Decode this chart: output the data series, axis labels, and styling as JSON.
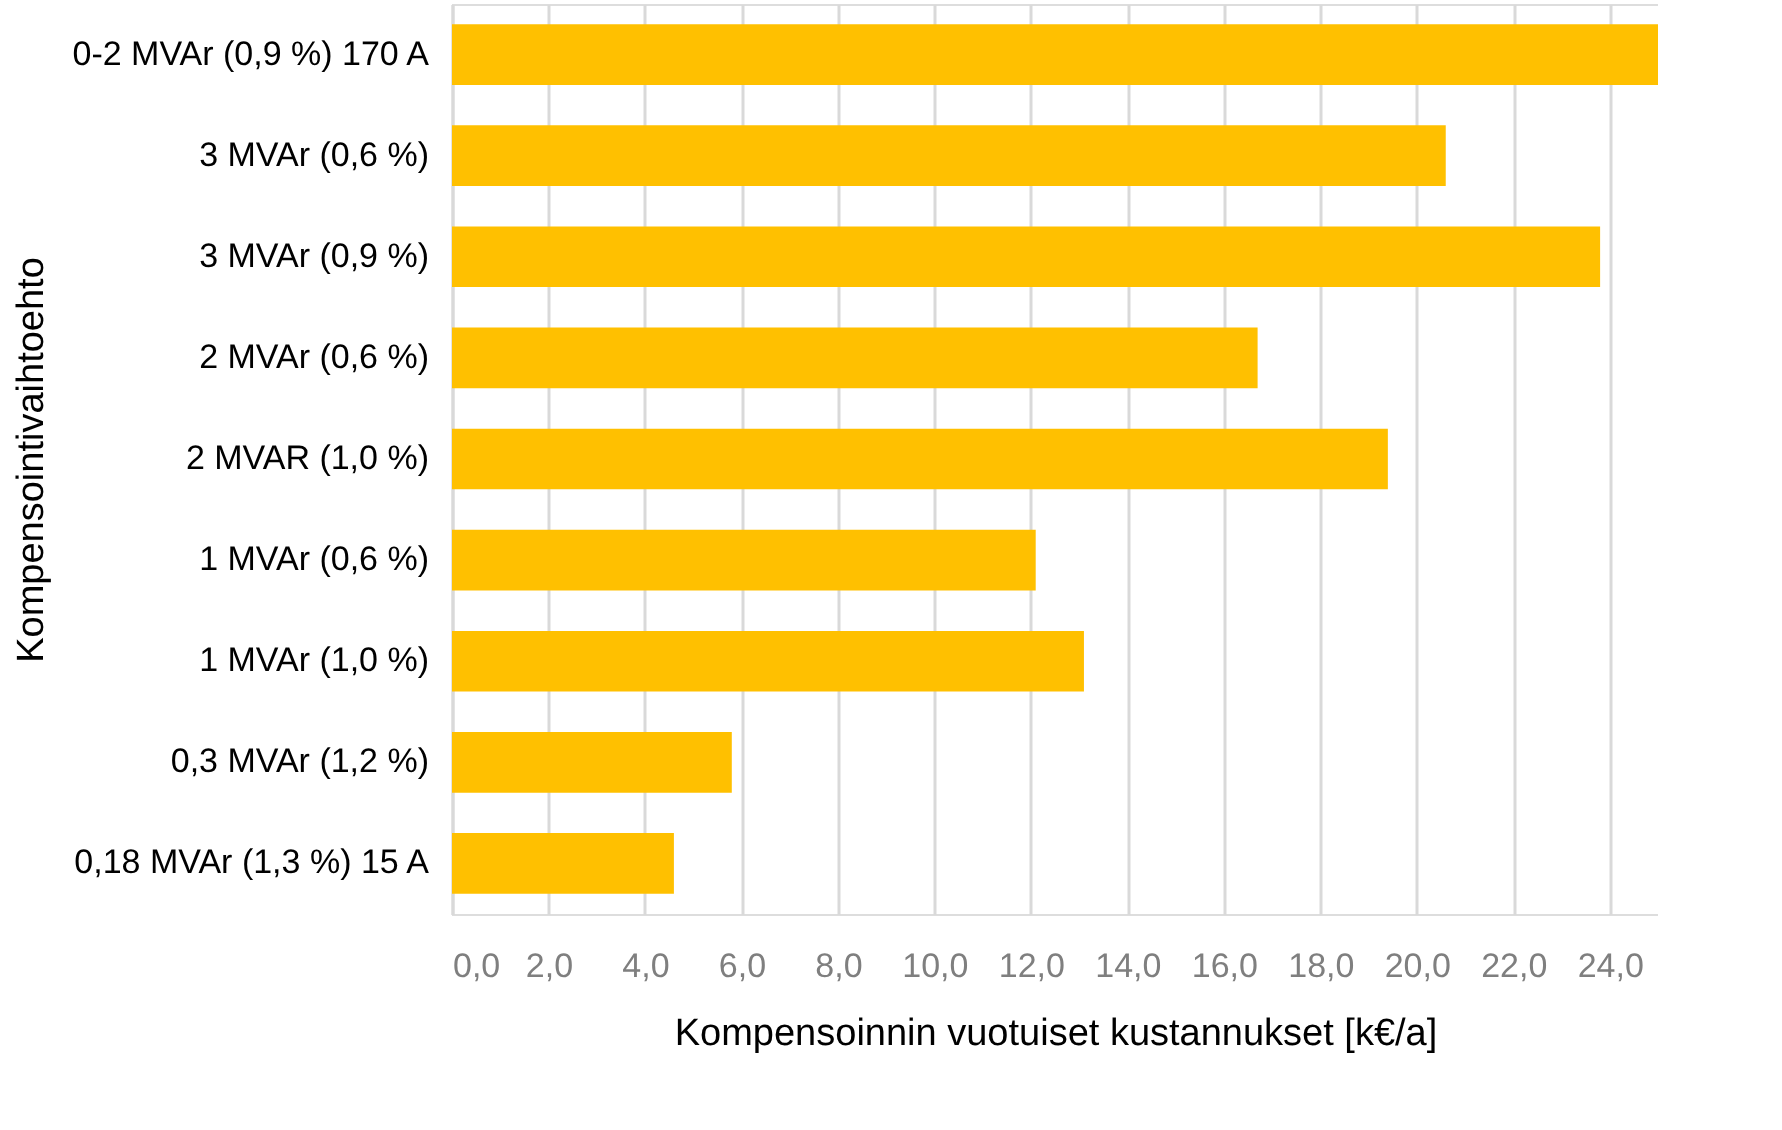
{
  "chart_data": {
    "type": "bar",
    "orientation": "horizontal",
    "xlabel": "Kompensoinnin vuotuiset kustannukset [k€/a]",
    "ylabel": "Kompensointivaihtoehto",
    "categories": [
      "0-2 MVAr (0,9 %) 170 A",
      "3 MVAr (0,6 %)",
      "3 MVAr (0,9 %)",
      "2 MVAr (0,6 %)",
      "2 MVAR (1,0 %)",
      "1 MVAr (0,6 %)",
      "1 MVAr (1,0 %)",
      "0,3 MVAr (1,2 %)",
      "0,18 MVAr (1,3 %) 15 A"
    ],
    "values": [
      25.0,
      20.6,
      23.8,
      16.7,
      19.4,
      12.1,
      13.1,
      5.8,
      4.6
    ],
    "color": "#ffc000",
    "xlim": [
      0,
      25
    ],
    "xticks": [
      {
        "value": 0,
        "label": "0,0"
      },
      {
        "value": 2,
        "label": "2,0"
      },
      {
        "value": 4,
        "label": "4,0"
      },
      {
        "value": 6,
        "label": "6,0"
      },
      {
        "value": 8,
        "label": "8,0"
      },
      {
        "value": 10,
        "label": "10,0"
      },
      {
        "value": 12,
        "label": "12,0"
      },
      {
        "value": 14,
        "label": "14,0"
      },
      {
        "value": 16,
        "label": "16,0"
      },
      {
        "value": 18,
        "label": "18,0"
      },
      {
        "value": 20,
        "label": "20,0"
      },
      {
        "value": 22,
        "label": "22,0"
      },
      {
        "value": 24,
        "label": "24,0"
      }
    ],
    "grid": "x"
  }
}
